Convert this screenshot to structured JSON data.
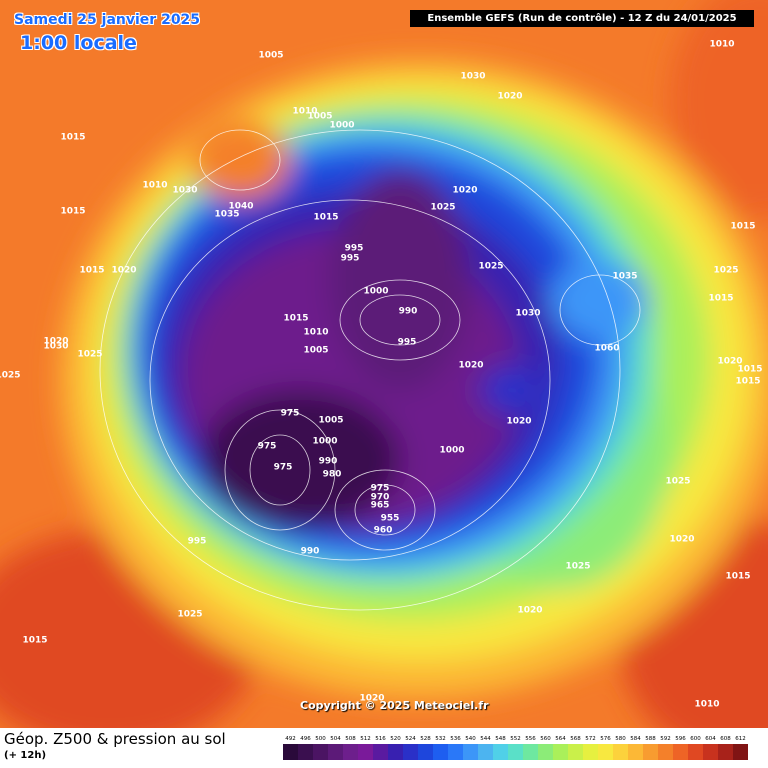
{
  "header": {
    "date": "Samedi 25 janvier 2025",
    "time": "1:00 locale",
    "run": "Ensemble GEFS  (Run de contrôle)  -  12 Z du 24/01/2025"
  },
  "footer": {
    "title": "Géop. Z500 & pression au sol",
    "lead": "(+ 12h)",
    "copyright": "Copyright © 2025 Meteociel.fr"
  },
  "legend": {
    "values": [
      492,
      496,
      500,
      504,
      508,
      512,
      516,
      520,
      524,
      528,
      532,
      536,
      540,
      544,
      548,
      552,
      556,
      560,
      564,
      568,
      572,
      576,
      580,
      584,
      588,
      592,
      596,
      600,
      604,
      608,
      612
    ],
    "colors": [
      "#2a0a3a",
      "#3a0f4f",
      "#4b1463",
      "#5c1a78",
      "#6d1f8c",
      "#7a1a9a",
      "#5a1aa0",
      "#3820b0",
      "#2a30c8",
      "#1e46dc",
      "#1e5ef0",
      "#2a78f8",
      "#3c96f8",
      "#4cb4f0",
      "#50d0e8",
      "#5ae0c8",
      "#6ee8a0",
      "#8cec78",
      "#aaf05a",
      "#caf04a",
      "#e6f040",
      "#f8e840",
      "#fcd23c",
      "#fcb836",
      "#f89c30",
      "#f4802a",
      "#ee6426",
      "#e04822",
      "#c8321e",
      "#a8221a",
      "#801414"
    ]
  },
  "isobar_labels": [
    1005,
    1010,
    1030,
    1020,
    1010,
    1005,
    1000,
    1015,
    1010,
    1030,
    1040,
    1035,
    1015,
    1015,
    1020,
    1025,
    995,
    995,
    1015,
    1025,
    1015,
    1020,
    1035,
    1025,
    1000,
    990,
    1015,
    1030,
    1015,
    1010,
    995,
    1020,
    1030,
    1025,
    1005,
    1060,
    1020,
    1015,
    1015,
    1025,
    1020,
    975,
    1005,
    1020,
    1000,
    975,
    1000,
    975,
    990,
    980,
    975,
    970,
    1025,
    965,
    955,
    960,
    995,
    1020,
    990,
    1025,
    1015,
    1025,
    1020,
    1015,
    1020,
    1010
  ]
}
